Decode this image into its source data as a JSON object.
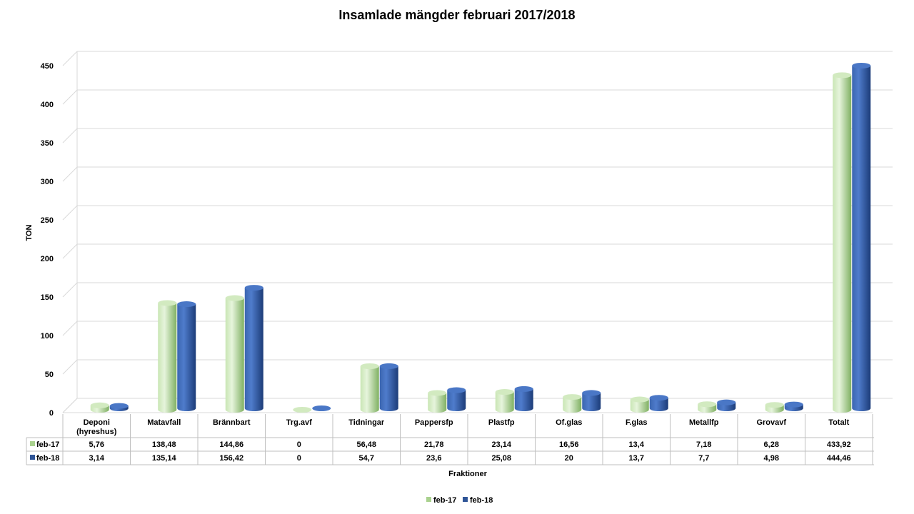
{
  "chart_data": {
    "type": "bar",
    "title": "Insamlade mängder februari 2017/2018",
    "xlabel": "Fraktioner",
    "ylabel": "TON",
    "ylim": [
      0,
      450
    ],
    "yticks": [
      0,
      50,
      100,
      150,
      200,
      250,
      300,
      350,
      400,
      450
    ],
    "grid": true,
    "legend_position": "bottom",
    "categories": [
      [
        "Deponi",
        "(hyreshus)"
      ],
      [
        "Matavfall"
      ],
      [
        "Brännbart"
      ],
      [
        "Trg.avf"
      ],
      [
        "Tidningar"
      ],
      [
        "Pappersfp"
      ],
      [
        "Plastfp"
      ],
      [
        "Of.glas"
      ],
      [
        "F.glas"
      ],
      [
        "Metallfp"
      ],
      [
        "Grovavf"
      ],
      [
        "Totalt"
      ]
    ],
    "series": [
      {
        "name": "feb-17",
        "color": "#a9d18e",
        "values": [
          5.76,
          138.48,
          144.86,
          0,
          56.48,
          21.78,
          23.14,
          16.56,
          13.4,
          7.18,
          6.28,
          433.92
        ],
        "labels": [
          "5,76",
          "138,48",
          "144,86",
          "0",
          "56,48",
          "21,78",
          "23,14",
          "16,56",
          "13,4",
          "7,18",
          "6,28",
          "433,92"
        ]
      },
      {
        "name": "feb-18",
        "color": "#2f5597",
        "values": [
          3.14,
          135.14,
          156.42,
          0,
          54.7,
          23.6,
          25.08,
          20,
          13.7,
          7.7,
          4.98,
          444.46
        ],
        "labels": [
          "3,14",
          "135,14",
          "156,42",
          "0",
          "54,7",
          "23,6",
          "25,08",
          "20",
          "13,7",
          "7,7",
          "4,98",
          "444,46"
        ]
      }
    ]
  }
}
